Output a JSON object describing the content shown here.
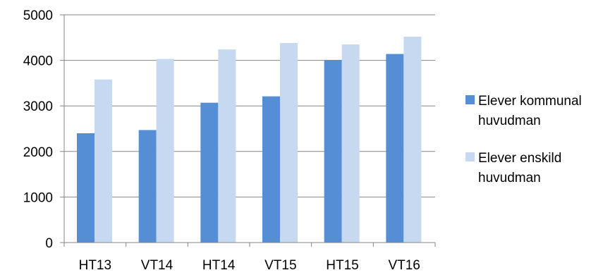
{
  "chart_data": {
    "type": "bar",
    "title": "",
    "xlabel": "",
    "ylabel": "",
    "categories": [
      "HT13",
      "VT14",
      "HT14",
      "VT15",
      "HT15",
      "VT16"
    ],
    "ylim": [
      0,
      5000
    ],
    "yticks": [
      0,
      1000,
      2000,
      3000,
      4000,
      5000
    ],
    "grid": true,
    "legend_position": "right",
    "series": [
      {
        "name": "Elever kommunal huvudman",
        "legend_lines": [
          "Elever kommunal",
          "huvudman"
        ],
        "color": "#558ED5",
        "values": [
          2400,
          2470,
          3070,
          3210,
          4010,
          4140
        ]
      },
      {
        "name": "Elever enskild huvudman",
        "legend_lines": [
          "Elever enskild",
          "huvudman"
        ],
        "color": "#C6D9F1",
        "values": [
          3580,
          4030,
          4240,
          4380,
          4350,
          4520
        ]
      }
    ]
  }
}
